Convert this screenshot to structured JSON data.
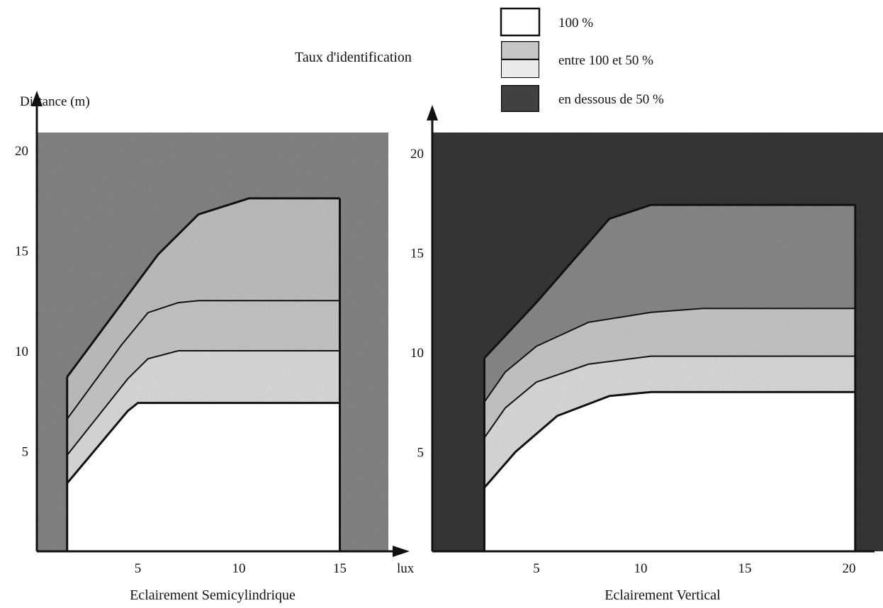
{
  "heading": "Taux d'identification",
  "legend": [
    {
      "label": "100 %",
      "fill": "#ffffff"
    },
    {
      "label": "entre 100 et 50 %",
      "fill": "#d8d8d8"
    },
    {
      "label": "en dessous de 50 %",
      "fill": "#4a4a4a"
    }
  ],
  "colors": {
    "band_100": "#ffffff",
    "band_light": "#e4e4e4",
    "band_mid": "#cfcfcf",
    "band_upper_left": "#c8c8c8",
    "band_upper_right": "#8f8f8f",
    "below_50_left": "#8a8a8a",
    "below_50_right": "#3a3a3a",
    "ink": "#111111"
  },
  "chart_data": [
    {
      "type": "area",
      "title": "Eclairement Semicylindrique",
      "ylabel": "Distance (m)",
      "xlabel": "lux",
      "xlim": [
        0,
        16
      ],
      "ylim": [
        0,
        21
      ],
      "x_ticks": [
        5,
        10,
        15
      ],
      "x_tick_labels": [
        "5",
        "10",
        "15"
      ],
      "y_ticks": [
        5,
        10,
        15,
        20
      ],
      "y_tick_labels": [
        "5",
        "10",
        "15",
        "20"
      ],
      "grid": false,
      "x_range": [
        1.5,
        15
      ],
      "boundaries": [
        {
          "name": "100 %",
          "points": [
            [
              1.5,
              3.4
            ],
            [
              4.5,
              7.0
            ],
            [
              5.0,
              7.4
            ],
            [
              15,
              7.4
            ]
          ]
        },
        {
          "name": "entre 100 et 50 %",
          "points": [
            [
              1.5,
              4.8
            ],
            [
              4.5,
              8.6
            ],
            [
              5.5,
              9.6
            ],
            [
              7.0,
              10.0
            ],
            [
              15,
              10.0
            ]
          ]
        },
        {
          "name": "entre 100 et 50 %",
          "points": [
            [
              1.5,
              6.6
            ],
            [
              4.2,
              10.3
            ],
            [
              5.5,
              11.9
            ],
            [
              7.0,
              12.4
            ],
            [
              8.0,
              12.5
            ],
            [
              15,
              12.5
            ]
          ]
        },
        {
          "name": "en dessous de 50 %",
          "points": [
            [
              1.5,
              8.7
            ],
            [
              6.0,
              14.8
            ],
            [
              8.0,
              16.8
            ],
            [
              10.5,
              17.6
            ],
            [
              15,
              17.6
            ]
          ]
        }
      ]
    },
    {
      "type": "area",
      "title": "Eclairement Vertical",
      "xlim": [
        0,
        21
      ],
      "ylim": [
        0,
        21
      ],
      "x_ticks": [
        5,
        10,
        15,
        20
      ],
      "x_tick_labels": [
        "5",
        "10",
        "15",
        "20"
      ],
      "y_ticks": [
        5,
        10,
        15,
        20
      ],
      "y_tick_labels": [
        "5",
        "10",
        "15",
        "20"
      ],
      "grid": false,
      "x_range": [
        2.5,
        20.3
      ],
      "boundaries": [
        {
          "name": "100 %",
          "points": [
            [
              2.5,
              3.2
            ],
            [
              4.0,
              5.0
            ],
            [
              6.0,
              6.8
            ],
            [
              8.5,
              7.8
            ],
            [
              10.5,
              8.0
            ],
            [
              20.3,
              8.0
            ]
          ]
        },
        {
          "name": "entre 100 et 50 %",
          "points": [
            [
              2.5,
              5.7
            ],
            [
              3.5,
              7.2
            ],
            [
              5.0,
              8.5
            ],
            [
              7.5,
              9.4
            ],
            [
              10.5,
              9.8
            ],
            [
              20.3,
              9.8
            ]
          ]
        },
        {
          "name": "entre 100 et 50 %",
          "points": [
            [
              2.5,
              7.5
            ],
            [
              3.5,
              9.0
            ],
            [
              5.0,
              10.3
            ],
            [
              7.5,
              11.5
            ],
            [
              10.5,
              12.0
            ],
            [
              13.0,
              12.2
            ],
            [
              20.3,
              12.2
            ]
          ]
        },
        {
          "name": "en dessous de 50 %",
          "points": [
            [
              2.5,
              9.7
            ],
            [
              5.0,
              12.5
            ],
            [
              8.5,
              16.7
            ],
            [
              10.5,
              17.4
            ],
            [
              20.3,
              17.4
            ]
          ]
        }
      ]
    }
  ]
}
